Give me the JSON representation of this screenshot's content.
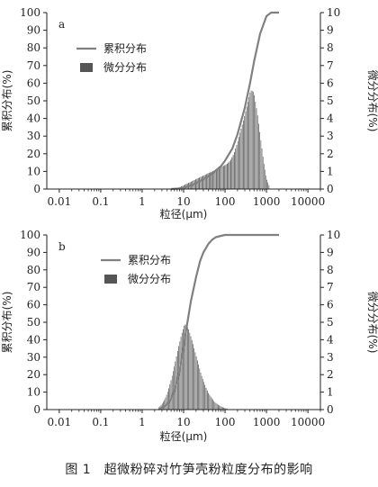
{
  "figure": {
    "caption": "图 1　超微粉碎对竹笋壳粉粒度分布的影响"
  },
  "colors": {
    "cumulative_line": "#808080",
    "differential_fill": "#555555",
    "axis": "#222222"
  },
  "chart_data": [
    {
      "panel_label": "a",
      "type": "line+histogram",
      "xlabel": "粒径(μm)",
      "ylabel_left": "累积分布(%)",
      "ylabel_right": "微分分布(%)",
      "xscale": "log",
      "xlim": [
        0.005,
        20000
      ],
      "ylim_left": [
        0,
        100
      ],
      "ylim_right": [
        0,
        10
      ],
      "x_tick_labels": [
        "0.01",
        "0.1",
        "1",
        "10",
        "100",
        "1000",
        "10000"
      ],
      "x_ticks": [
        0.01,
        0.1,
        1,
        10,
        100,
        1000,
        10000
      ],
      "y_left_ticks": [
        0,
        10,
        20,
        30,
        40,
        50,
        60,
        70,
        80,
        90,
        100
      ],
      "y_right_ticks": [
        0,
        1,
        2,
        3,
        4,
        5,
        6,
        7,
        8,
        9,
        10
      ],
      "legend_position": "top-left",
      "legend": [
        "累积分布",
        "微分分布"
      ],
      "cumulative": {
        "name": "累积分布",
        "x": [
          5,
          8,
          10,
          15,
          20,
          30,
          50,
          80,
          100,
          150,
          200,
          300,
          400,
          500,
          700,
          1000,
          1300,
          1700,
          2000
        ],
        "y": [
          0,
          0.3,
          0.8,
          2,
          3.3,
          5.5,
          9,
          13,
          16,
          23,
          31,
          46,
          60,
          72,
          88,
          98,
          100,
          100,
          100
        ]
      },
      "differential": {
        "name": "微分分布",
        "x": [
          8,
          10,
          12,
          15,
          18,
          22,
          27,
          33,
          40,
          50,
          60,
          75,
          90,
          110,
          135,
          165,
          200,
          240,
          290,
          350,
          420,
          500,
          600,
          720,
          860,
          1000,
          1200
        ],
        "y": [
          0.1,
          0.2,
          0.3,
          0.4,
          0.5,
          0.6,
          0.7,
          0.8,
          0.9,
          1.0,
          1.1,
          1.2,
          1.3,
          1.4,
          1.6,
          2.0,
          2.6,
          3.3,
          4.0,
          4.8,
          5.6,
          5.5,
          4.4,
          3.0,
          1.6,
          0.6,
          0.15
        ]
      }
    },
    {
      "panel_label": "b",
      "type": "line+histogram",
      "xlabel": "粒径(μm)",
      "ylabel_left": "累积分布(%)",
      "ylabel_right": "微分分布(%)",
      "xscale": "log",
      "xlim": [
        0.005,
        20000
      ],
      "ylim_left": [
        0,
        100
      ],
      "ylim_right": [
        0,
        10
      ],
      "x_tick_labels": [
        "0.01",
        "0.1",
        "1",
        "10",
        "100",
        "1000",
        "10000"
      ],
      "x_ticks": [
        0.01,
        0.1,
        1,
        10,
        100,
        1000,
        10000
      ],
      "y_left_ticks": [
        0,
        10,
        20,
        30,
        40,
        50,
        60,
        70,
        80,
        90,
        100
      ],
      "y_right_ticks": [
        0,
        1,
        2,
        3,
        4,
        5,
        6,
        7,
        8,
        9,
        10
      ],
      "legend_position": "top-center",
      "legend": [
        "累积分布",
        "微分分布"
      ],
      "cumulative": {
        "name": "累积分布",
        "x": [
          2.5,
          3,
          4,
          5,
          6,
          8,
          10,
          12,
          15,
          20,
          25,
          30,
          40,
          50,
          60,
          80,
          100,
          120,
          150,
          200,
          300,
          500,
          1000,
          2000
        ],
        "y": [
          0,
          1,
          3,
          6,
          11,
          22,
          36,
          48,
          62,
          76,
          85,
          90,
          95,
          97.5,
          98.7,
          99.5,
          100,
          100,
          100,
          100,
          100,
          100,
          100,
          100
        ]
      },
      "differential": {
        "name": "微分分布",
        "x": [
          2.5,
          3,
          3.6,
          4.3,
          5.2,
          6.2,
          7.5,
          9,
          10.8,
          13,
          15.6,
          18.7,
          22.5,
          27,
          32,
          39,
          47,
          56,
          67,
          81,
          97,
          117
        ],
        "y": [
          0.1,
          0.3,
          0.6,
          1.1,
          1.8,
          2.6,
          3.5,
          4.3,
          4.9,
          4.7,
          4.1,
          3.4,
          2.7,
          2.0,
          1.5,
          1.0,
          0.7,
          0.45,
          0.3,
          0.18,
          0.1,
          0.05
        ]
      }
    }
  ]
}
